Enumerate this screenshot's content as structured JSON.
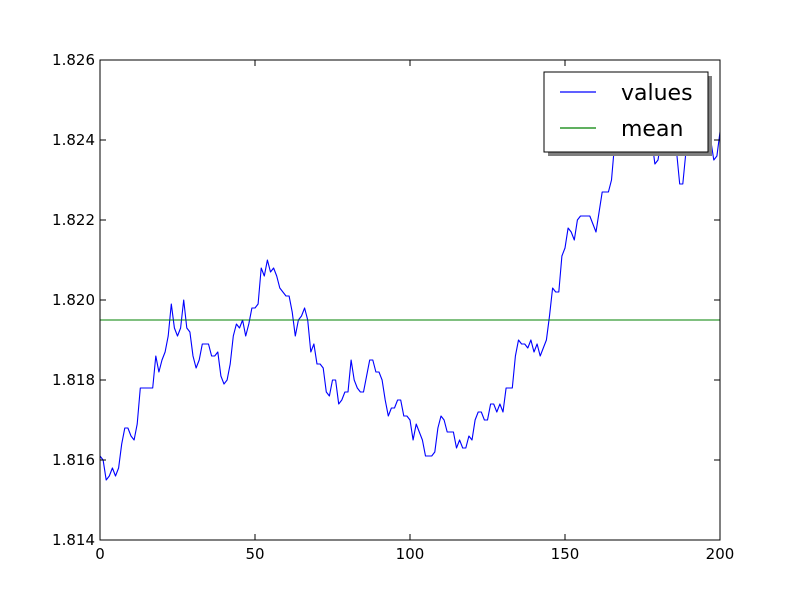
{
  "chart_data": {
    "type": "line",
    "title": "",
    "xlabel": "",
    "ylabel": "",
    "xlim": [
      0,
      200
    ],
    "ylim": [
      1.814,
      1.826
    ],
    "xticks": [
      0,
      50,
      100,
      150,
      200
    ],
    "xtick_labels": [
      "0",
      "50",
      "100",
      "150",
      "200"
    ],
    "yticks": [
      1.814,
      1.816,
      1.818,
      1.82,
      1.822,
      1.824,
      1.826
    ],
    "ytick_labels": [
      "1.814",
      "1.816",
      "1.818",
      "1.820",
      "1.822",
      "1.824",
      "1.826"
    ],
    "grid": false,
    "legend_position": "top-right",
    "series": [
      {
        "name": "values",
        "color": "#0000ff",
        "values": [
          1.8161,
          1.816,
          1.8155,
          1.8156,
          1.8158,
          1.8156,
          1.8158,
          1.8164,
          1.8168,
          1.8168,
          1.8166,
          1.8165,
          1.8169,
          1.8178,
          1.8178,
          1.8178,
          1.8178,
          1.8178,
          1.8186,
          1.8182,
          1.8185,
          1.8187,
          1.8191,
          1.8199,
          1.8193,
          1.8191,
          1.8193,
          1.82,
          1.8193,
          1.8192,
          1.8186,
          1.8183,
          1.8185,
          1.8189,
          1.8189,
          1.8189,
          1.8186,
          1.8186,
          1.8187,
          1.8181,
          1.8179,
          1.818,
          1.8184,
          1.8191,
          1.8194,
          1.8193,
          1.8195,
          1.8191,
          1.8194,
          1.8198,
          1.8198,
          1.8199,
          1.8208,
          1.8206,
          1.821,
          1.8207,
          1.8208,
          1.8206,
          1.8203,
          1.8202,
          1.8201,
          1.8201,
          1.8197,
          1.8191,
          1.8195,
          1.8196,
          1.8198,
          1.8195,
          1.8187,
          1.8189,
          1.8184,
          1.8184,
          1.8183,
          1.8177,
          1.8176,
          1.818,
          1.818,
          1.8174,
          1.8175,
          1.8177,
          1.8177,
          1.8185,
          1.818,
          1.8178,
          1.8177,
          1.8177,
          1.8181,
          1.8185,
          1.8185,
          1.8182,
          1.8182,
          1.818,
          1.8175,
          1.8171,
          1.8173,
          1.8173,
          1.8175,
          1.8175,
          1.8171,
          1.8171,
          1.817,
          1.8165,
          1.8169,
          1.8167,
          1.8165,
          1.8161,
          1.8161,
          1.8161,
          1.8162,
          1.8168,
          1.8171,
          1.817,
          1.8167,
          1.8167,
          1.8167,
          1.8163,
          1.8165,
          1.8163,
          1.8163,
          1.8166,
          1.8165,
          1.817,
          1.8172,
          1.8172,
          1.817,
          1.817,
          1.8174,
          1.8174,
          1.8172,
          1.8174,
          1.8172,
          1.8178,
          1.8178,
          1.8178,
          1.8186,
          1.819,
          1.8189,
          1.8189,
          1.8188,
          1.819,
          1.8187,
          1.8189,
          1.8186,
          1.8188,
          1.819,
          1.8196,
          1.8203,
          1.8202,
          1.8202,
          1.8211,
          1.8213,
          1.8218,
          1.8217,
          1.8215,
          1.822,
          1.8221,
          1.8221,
          1.8221,
          1.8221,
          1.8219,
          1.8217,
          1.8222,
          1.8227,
          1.8227,
          1.8227,
          1.823,
          1.8239,
          1.824,
          1.824,
          1.824,
          1.824,
          1.824,
          1.824,
          1.824,
          1.824,
          1.824,
          1.824,
          1.824,
          1.824,
          1.8234,
          1.8235,
          1.824,
          1.824,
          1.824,
          1.8238,
          1.8238,
          1.8237,
          1.8229,
          1.8229,
          1.8237,
          1.824,
          1.824,
          1.824,
          1.824,
          1.824,
          1.824,
          1.824,
          1.824,
          1.8235,
          1.8236,
          1.8242
        ]
      },
      {
        "name": "mean",
        "color": "#008000",
        "x": [
          0,
          200
        ],
        "values": [
          1.8195,
          1.8195
        ]
      }
    ]
  }
}
